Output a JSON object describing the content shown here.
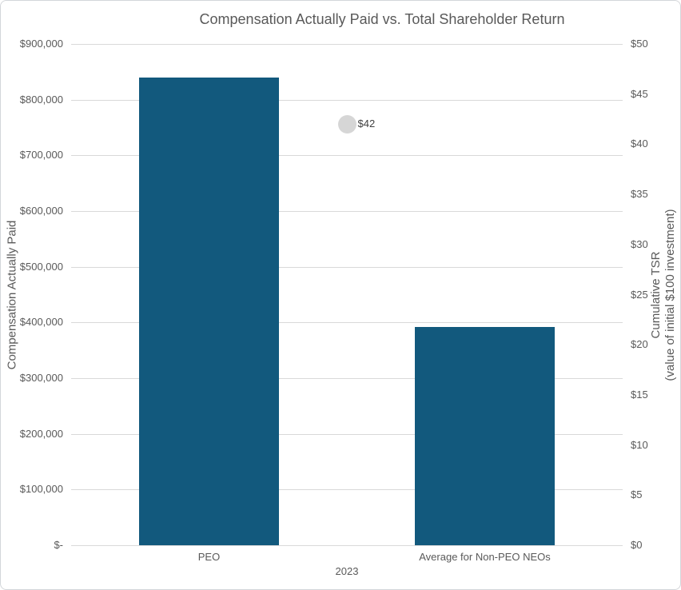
{
  "chart_data": {
    "type": "bar",
    "subtype": "bar-and-scatter-combo",
    "title": "Compensation Actually Paid vs. Total Shareholder Return",
    "group_label": "2023",
    "categories": [
      "PEO",
      "Average for Non-PEO NEOs"
    ],
    "series": [
      {
        "name": "Compensation Actually Paid",
        "type": "bar",
        "axis": "left",
        "values": [
          839000,
          392000
        ],
        "color": "#12597d"
      },
      {
        "name": "Cumulative TSR",
        "type": "scatter",
        "axis": "right",
        "values": [
          42
        ],
        "data_label": "$42",
        "color": "#d6d6d6"
      }
    ],
    "left_axis": {
      "title": "Compensation Actually Paid",
      "min": 0,
      "max": 900000,
      "step": 100000,
      "tick_labels": [
        "$900,000",
        "$800,000",
        "$700,000",
        "$600,000",
        "$500,000",
        "$400,000",
        "$300,000",
        "$200,000",
        "$100,000",
        "$-"
      ]
    },
    "right_axis": {
      "title_line1": "Cumulative TSR",
      "title_line2": "(value of initial $100 investment)",
      "min": 0,
      "max": 50,
      "step": 5,
      "tick_labels": [
        "$50",
        "$45",
        "$40",
        "$35",
        "$30",
        "$25",
        "$20",
        "$15",
        "$10",
        "$5",
        "$0"
      ]
    },
    "grid": true,
    "legend_position": "none",
    "colors": {
      "bar": "#12597d",
      "point": "#d6d6d6",
      "gridline": "#d9d9d9",
      "axis_line": "#d9d9d9",
      "text": "#595959",
      "point_label_text": "#404040",
      "background": "#ffffff",
      "card_border": "#d3d6da"
    }
  }
}
